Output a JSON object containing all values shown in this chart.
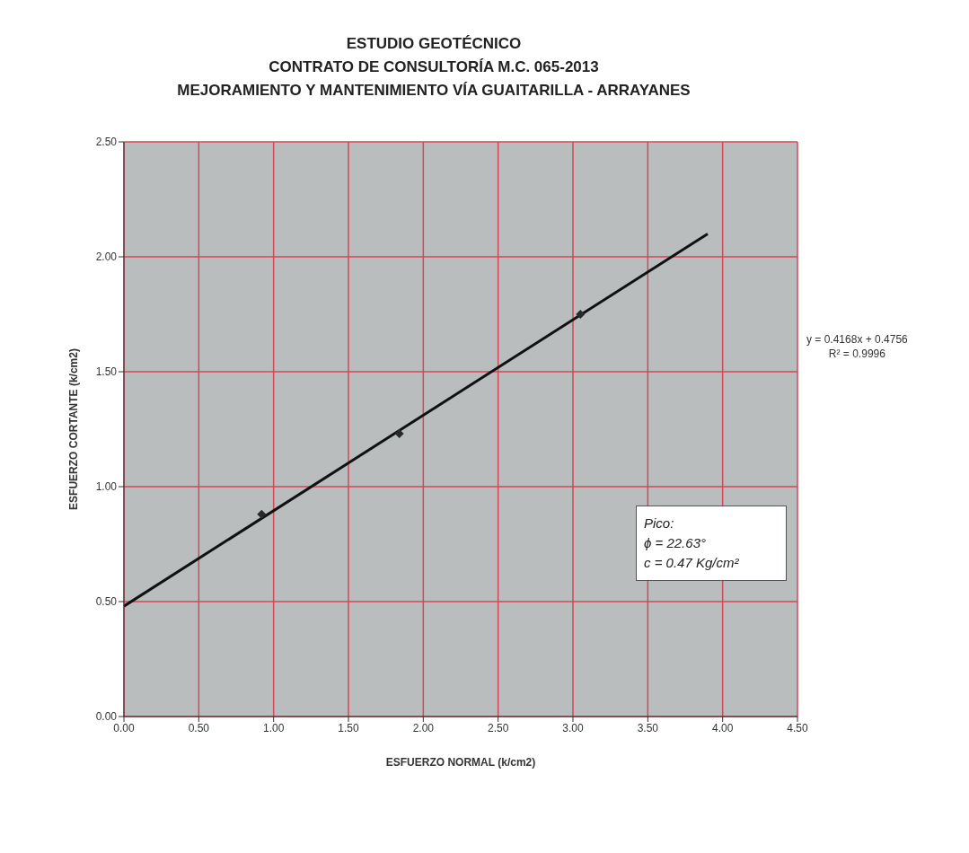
{
  "chart_data": {
    "type": "scatter",
    "title": "ESTUDIO GEOTÉCNICO\nCONTRATO DE CONSULTORÍA M.C. 065-2013\nMEJORAMIENTO Y MANTENIMIENTO VÍA GUAITARILLA - ARRAYANES",
    "xlabel": "ESFUERZO NORMAL (k/cm2)",
    "ylabel": "ESFUERZO CORTANTE (k/cm2)",
    "series": [
      {
        "color": "#2a2a2a",
        "marker": "diamond",
        "x": [
          0.92,
          1.84,
          3.05
        ],
        "values": [
          0.88,
          1.23,
          1.75
        ]
      },
      {
        "type": "line",
        "color": "#111111",
        "x": [
          0,
          3.9
        ],
        "values": [
          0.48,
          2.1
        ]
      }
    ],
    "xlim": [
      0,
      4.5
    ],
    "xticks": [
      {
        "value": 0,
        "label": "0.00"
      },
      {
        "value": 0.5,
        "label": "0.50"
      },
      {
        "value": 1,
        "label": "1.00"
      },
      {
        "value": 1.5,
        "label": "1.50"
      },
      {
        "value": 2,
        "label": "2.00"
      },
      {
        "value": 2.5,
        "label": "2.50"
      },
      {
        "value": 3,
        "label": "3.00"
      },
      {
        "value": 3.5,
        "label": "3.50"
      },
      {
        "value": 4,
        "label": "4.00"
      },
      {
        "value": 4.5,
        "label": "4.50"
      }
    ],
    "ylim": [
      0,
      2.5
    ],
    "yticks": [
      {
        "value": 0,
        "label": "0.00"
      },
      {
        "value": 0.5,
        "label": "0.50"
      },
      {
        "value": 1,
        "label": "1.00"
      },
      {
        "value": 1.5,
        "label": "1.50"
      },
      {
        "value": 2,
        "label": "2.00"
      },
      {
        "value": 2.5,
        "label": "2.50"
      }
    ],
    "grid": true,
    "annotations": [
      "y = 0.4168x + 0.4756",
      "R² = 0.9996",
      "Pico:",
      "ϕ = 22.63°",
      "c = 0.47 Kg/cm²"
    ]
  }
}
